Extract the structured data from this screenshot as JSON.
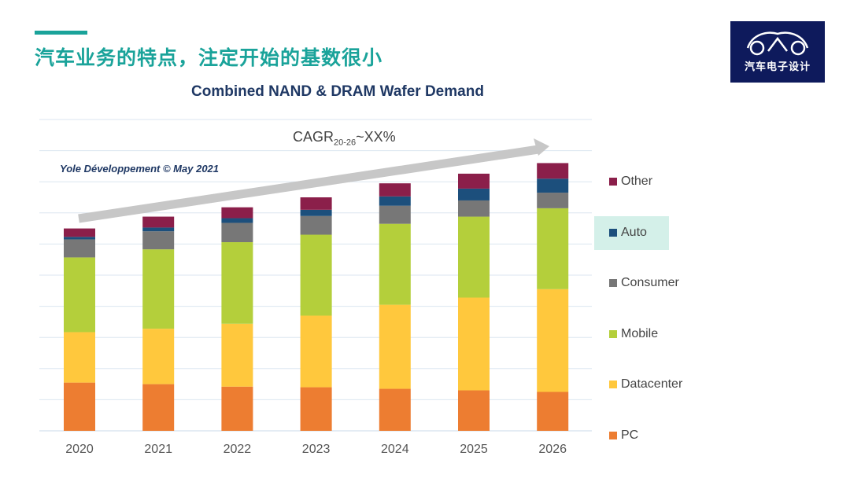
{
  "slide": {
    "title": "汽车业务的特点，注定开始的基数很小",
    "logo_text": "汽车电子设计",
    "accent_color": "#1aa39a"
  },
  "chart_data": {
    "type": "bar",
    "stacked": true,
    "title": "Combined NAND & DRAM Wafer Demand",
    "source": "Yole Développement © May 2021",
    "annotation": {
      "base": "CAGR",
      "sub": "20-26",
      "value": "~XX%"
    },
    "categories": [
      "2020",
      "2021",
      "2022",
      "2023",
      "2024",
      "2025",
      "2026"
    ],
    "ylim": [
      0,
      10
    ],
    "grid": true,
    "legend_position": "right",
    "series": [
      {
        "name": "PC",
        "color": "#ed7d31",
        "values": [
          1.55,
          1.5,
          1.42,
          1.4,
          1.35,
          1.3,
          1.25
        ]
      },
      {
        "name": "Datacenter",
        "color": "#ffc83d",
        "values": [
          1.62,
          1.78,
          2.02,
          2.3,
          2.7,
          2.98,
          3.3
        ]
      },
      {
        "name": "Mobile",
        "color": "#b4cf3b",
        "values": [
          2.4,
          2.55,
          2.62,
          2.6,
          2.6,
          2.6,
          2.6
        ]
      },
      {
        "name": "Consumer",
        "color": "#777777",
        "values": [
          0.58,
          0.58,
          0.62,
          0.6,
          0.58,
          0.52,
          0.5
        ]
      },
      {
        "name": "Auto",
        "color": "#1c4f7c",
        "values": [
          0.08,
          0.12,
          0.15,
          0.2,
          0.3,
          0.38,
          0.45
        ]
      },
      {
        "name": "Other",
        "color": "#8b1f4a",
        "values": [
          0.27,
          0.35,
          0.35,
          0.4,
          0.42,
          0.48,
          0.5
        ]
      }
    ],
    "legend_order": [
      "Other",
      "Auto",
      "Consumer",
      "Mobile",
      "Datacenter",
      "PC"
    ],
    "highlighted_series": "Auto"
  }
}
